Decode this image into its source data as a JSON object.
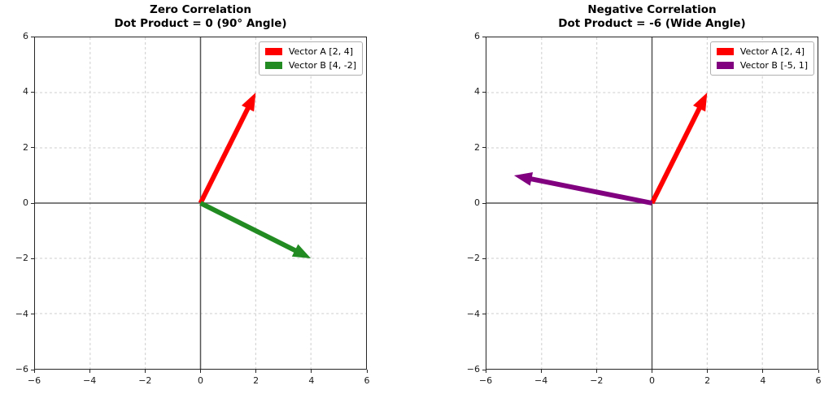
{
  "figure": {
    "background": "#ffffff",
    "spine_color": "#262626",
    "grid_color": "#cccccc",
    "zero_line_color": "#545454",
    "tick_color": "#262626",
    "text_color": "#000000",
    "legend_border_color": "#b0b0b0"
  },
  "chart_data": [
    {
      "type": "quiver",
      "title": "Zero Correlation",
      "subtitle": "Dot Product = 0 (90° Angle)",
      "dot_product": 0,
      "xlim": [
        -6,
        6
      ],
      "ylim": [
        -6,
        6
      ],
      "tick_values": [
        -6,
        -4,
        -2,
        0,
        2,
        4,
        6
      ],
      "tick_labels": [
        "−6",
        "−4",
        "−2",
        "0",
        "2",
        "4",
        "6"
      ],
      "grid": "dashed",
      "legend_position": "upper right",
      "series": [
        {
          "name": "Vector A",
          "origin": [
            0,
            0
          ],
          "vector": [
            2,
            4
          ],
          "color": "#ff0000",
          "legend_label": "Vector A [2, 4]"
        },
        {
          "name": "Vector B",
          "origin": [
            0,
            0
          ],
          "vector": [
            4,
            -2
          ],
          "color": "#228b22",
          "legend_label": "Vector B [4, -2]"
        }
      ]
    },
    {
      "type": "quiver",
      "title": "Negative Correlation",
      "subtitle": "Dot Product = -6 (Wide Angle)",
      "dot_product": -6,
      "xlim": [
        -6,
        6
      ],
      "ylim": [
        -6,
        6
      ],
      "tick_values": [
        -6,
        -4,
        -2,
        0,
        2,
        4,
        6
      ],
      "tick_labels": [
        "−6",
        "−4",
        "−2",
        "0",
        "2",
        "4",
        "6"
      ],
      "grid": "dashed",
      "legend_position": "upper right",
      "series": [
        {
          "name": "Vector A",
          "origin": [
            0,
            0
          ],
          "vector": [
            2,
            4
          ],
          "color": "#ff0000",
          "legend_label": "Vector A [2, 4]"
        },
        {
          "name": "Vector B",
          "origin": [
            0,
            0
          ],
          "vector": [
            -5,
            1
          ],
          "color": "#800080",
          "legend_label": "Vector B [-5, 1]"
        }
      ]
    }
  ]
}
